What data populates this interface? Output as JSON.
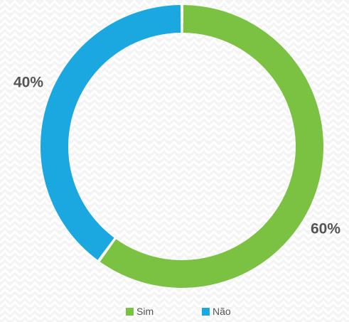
{
  "chart_data": {
    "type": "pie",
    "donut": true,
    "categories": [
      "Sim",
      "Não"
    ],
    "values": [
      60,
      40
    ],
    "labels": [
      "60%",
      "40%"
    ],
    "colors": [
      "#7cc242",
      "#1ba8e0"
    ],
    "legend_position": "bottom",
    "title": ""
  },
  "background": {
    "pattern": "chevron-zigzag",
    "color": "#f4f4f4",
    "line_color": "#ffffff"
  }
}
